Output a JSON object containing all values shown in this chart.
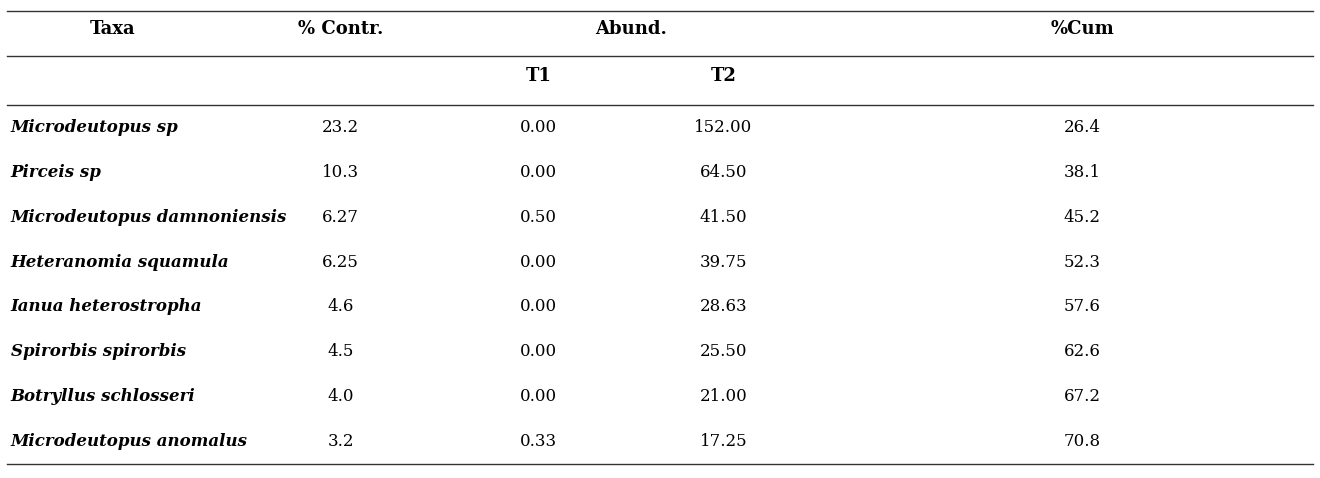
{
  "col_headers": [
    "Taxa",
    "% Contr.",
    "Abund.",
    "%Cum"
  ],
  "sub_headers_t1_t2": [
    "T1",
    "T2"
  ],
  "rows": [
    [
      "Microdeutopus sp",
      "23.2",
      "0.00",
      "152.00",
      "26.4"
    ],
    [
      "Pirceis sp",
      "10.3",
      "0.00",
      "64.50",
      "38.1"
    ],
    [
      "Microdeutopus damnoniensis",
      "6.27",
      "0.50",
      "41.50",
      "45.2"
    ],
    [
      "Heteranomia squamula",
      "6.25",
      "0.00",
      "39.75",
      "52.3"
    ],
    [
      "Ianua heterostropha",
      "4.6",
      "0.00",
      "28.63",
      "57.6"
    ],
    [
      "Spirorbis spirorbis",
      "4.5",
      "0.00",
      "25.50",
      "62.6"
    ],
    [
      "Botryllus schlosseri",
      "4.0",
      "0.00",
      "21.00",
      "67.2"
    ],
    [
      "Microdeutopus anomalus",
      "3.2",
      "0.33",
      "17.25",
      "70.8"
    ]
  ],
  "background_color": "#ffffff",
  "line_color": "#333333",
  "text_color": "#000000",
  "fig_width": 13.2,
  "fig_height": 4.78,
  "dpi": 100
}
